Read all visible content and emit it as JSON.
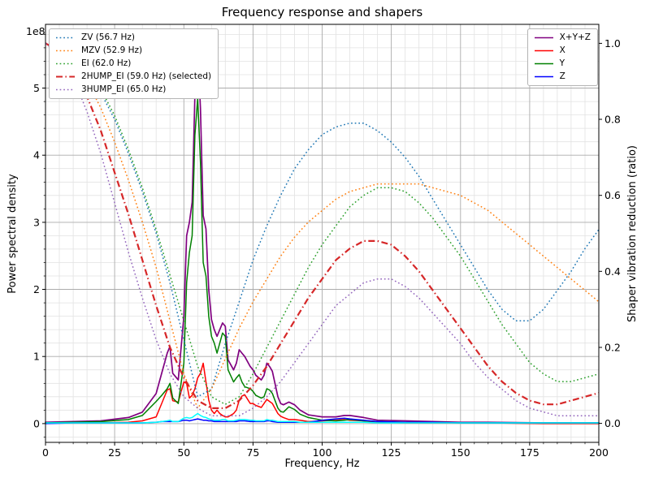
{
  "chart_data": {
    "type": "line",
    "title": "Frequency response and shapers",
    "xlabel": "Frequency, Hz",
    "ylabel_left": "Power spectral density",
    "ylabel_right": "Shaper vibration reduction (ratio)",
    "xlim": [
      0,
      200
    ],
    "x_ticks": [
      0,
      25,
      50,
      75,
      100,
      125,
      150,
      175,
      200
    ],
    "x_minor_step": 5,
    "left_axis": {
      "ticks": [
        0,
        1,
        2,
        3,
        4,
        5
      ],
      "lim": [
        -0.28,
        5.95
      ],
      "minor_step": 0.2,
      "offset": "1e8",
      "unit": "1e8"
    },
    "right_axis": {
      "ticks": [
        0,
        0.2,
        0.4,
        0.6,
        0.8,
        1
      ],
      "lim": [
        -0.05,
        1.05
      ]
    },
    "grid": {
      "major_color": "#ababab",
      "minor_color": "#e2e2e2"
    },
    "psd": {
      "x": [
        0,
        10,
        20,
        30,
        35,
        40,
        42,
        44,
        45,
        46,
        48,
        50,
        51,
        52,
        53,
        54,
        55,
        56,
        57,
        58,
        59,
        60,
        61,
        62,
        63,
        64,
        65,
        66,
        68,
        69,
        70,
        71,
        72,
        74,
        75,
        76,
        78,
        79,
        80,
        81,
        82,
        84,
        85,
        86,
        88,
        90,
        92,
        95,
        100,
        105,
        108,
        110,
        115,
        120,
        130,
        140,
        150,
        160,
        180,
        200
      ],
      "unit": "1e8",
      "series": [
        {
          "name": "sum",
          "label": "X+Y+Z",
          "color": "#800080",
          "width": 1.7,
          "values": [
            0.02,
            0.03,
            0.04,
            0.09,
            0.17,
            0.45,
            0.75,
            1.05,
            1.15,
            0.75,
            0.65,
            1.6,
            2.8,
            3.0,
            3.3,
            4.9,
            5.6,
            4.7,
            3.1,
            2.9,
            2.0,
            1.55,
            1.4,
            1.3,
            1.4,
            1.5,
            1.45,
            0.95,
            0.8,
            0.9,
            1.1,
            1.05,
            1.0,
            0.85,
            0.8,
            0.72,
            0.65,
            0.72,
            0.9,
            0.85,
            0.78,
            0.4,
            0.3,
            0.28,
            0.32,
            0.28,
            0.2,
            0.13,
            0.1,
            0.1,
            0.12,
            0.12,
            0.09,
            0.05,
            0.04,
            0.03,
            0.02,
            0.02,
            0.01,
            0.01
          ]
        },
        {
          "name": "x",
          "label": "X",
          "color": "#ff0000",
          "width": 1.5,
          "values": [
            0.01,
            0.01,
            0.01,
            0.02,
            0.04,
            0.1,
            0.3,
            0.5,
            0.52,
            0.34,
            0.32,
            0.62,
            0.6,
            0.38,
            0.42,
            0.52,
            0.68,
            0.75,
            0.9,
            0.62,
            0.35,
            0.2,
            0.15,
            0.2,
            0.15,
            0.12,
            0.1,
            0.1,
            0.15,
            0.2,
            0.35,
            0.41,
            0.43,
            0.3,
            0.3,
            0.27,
            0.24,
            0.3,
            0.36,
            0.33,
            0.3,
            0.15,
            0.11,
            0.09,
            0.06,
            0.06,
            0.05,
            0.03,
            0.04,
            0.05,
            0.06,
            0.05,
            0.04,
            0.02,
            0.01,
            0.01,
            0.01,
            0.01,
            0.0,
            0.0
          ]
        },
        {
          "name": "y",
          "label": "Y",
          "color": "#008000",
          "width": 1.5,
          "values": [
            0.01,
            0.02,
            0.03,
            0.06,
            0.12,
            0.33,
            0.42,
            0.52,
            0.6,
            0.38,
            0.3,
            0.9,
            2.1,
            2.55,
            2.8,
            4.3,
            4.85,
            3.9,
            2.4,
            2.2,
            1.6,
            1.3,
            1.2,
            1.05,
            1.2,
            1.35,
            1.3,
            0.8,
            0.62,
            0.68,
            0.73,
            0.62,
            0.55,
            0.52,
            0.48,
            0.42,
            0.38,
            0.4,
            0.52,
            0.5,
            0.45,
            0.23,
            0.18,
            0.17,
            0.25,
            0.21,
            0.14,
            0.09,
            0.05,
            0.04,
            0.05,
            0.06,
            0.04,
            0.03,
            0.02,
            0.02,
            0.01,
            0.01,
            0.01,
            0.01
          ]
        },
        {
          "name": "z",
          "label": "Z",
          "color": "#0000ff",
          "width": 1.5,
          "values": [
            0.0,
            0.01,
            0.01,
            0.01,
            0.01,
            0.02,
            0.03,
            0.03,
            0.03,
            0.03,
            0.03,
            0.05,
            0.05,
            0.04,
            0.05,
            0.06,
            0.07,
            0.06,
            0.05,
            0.05,
            0.04,
            0.04,
            0.03,
            0.03,
            0.03,
            0.03,
            0.03,
            0.03,
            0.03,
            0.03,
            0.04,
            0.04,
            0.04,
            0.03,
            0.03,
            0.03,
            0.03,
            0.03,
            0.04,
            0.04,
            0.03,
            0.02,
            0.02,
            0.02,
            0.02,
            0.02,
            0.02,
            0.02,
            0.05,
            0.07,
            0.08,
            0.07,
            0.05,
            0.03,
            0.02,
            0.02,
            0.01,
            0.01,
            0.01,
            0.01
          ]
        },
        {
          "name": "after_shaper",
          "label": "",
          "color": "#00ffff",
          "width": 1.5,
          "values": [
            0.01,
            0.01,
            0.01,
            0.01,
            0.01,
            0.02,
            0.03,
            0.04,
            0.05,
            0.03,
            0.03,
            0.08,
            0.09,
            0.08,
            0.09,
            0.12,
            0.15,
            0.12,
            0.1,
            0.09,
            0.07,
            0.06,
            0.05,
            0.05,
            0.05,
            0.06,
            0.06,
            0.04,
            0.04,
            0.05,
            0.06,
            0.06,
            0.06,
            0.05,
            0.05,
            0.04,
            0.04,
            0.04,
            0.06,
            0.05,
            0.05,
            0.03,
            0.03,
            0.03,
            0.03,
            0.03,
            0.02,
            0.02,
            0.02,
            0.02,
            0.02,
            0.02,
            0.02,
            0.01,
            0.01,
            0.01,
            0.01,
            0.01,
            0.01,
            0.01
          ]
        }
      ]
    },
    "shapers": {
      "x": [
        0,
        5,
        10,
        15,
        20,
        25,
        30,
        35,
        40,
        45,
        50,
        55,
        60,
        65,
        70,
        75,
        80,
        85,
        90,
        95,
        100,
        105,
        110,
        115,
        120,
        125,
        130,
        135,
        140,
        145,
        150,
        155,
        160,
        165,
        170,
        175,
        180,
        185,
        190,
        195,
        200
      ],
      "series": [
        {
          "name": "ZV",
          "label": "ZV (56.7 Hz)",
          "freq_hz": 56.7,
          "color": "#1f77b4",
          "linestyle": "dotted",
          "selected": false,
          "values": [
            1.0,
            0.99,
            0.97,
            0.93,
            0.87,
            0.8,
            0.71,
            0.61,
            0.5,
            0.37,
            0.22,
            0.07,
            0.09,
            0.21,
            0.32,
            0.43,
            0.52,
            0.6,
            0.67,
            0.72,
            0.76,
            0.78,
            0.79,
            0.79,
            0.77,
            0.74,
            0.7,
            0.65,
            0.59,
            0.53,
            0.47,
            0.41,
            0.35,
            0.3,
            0.27,
            0.27,
            0.3,
            0.35,
            0.4,
            0.46,
            0.51
          ]
        },
        {
          "name": "MZV",
          "label": "MZV (52.9 Hz)",
          "freq_hz": 52.9,
          "color": "#ff7f0e",
          "linestyle": "dotted",
          "selected": false,
          "values": [
            1.0,
            0.99,
            0.96,
            0.9,
            0.83,
            0.74,
            0.64,
            0.53,
            0.41,
            0.27,
            0.13,
            0.04,
            0.09,
            0.17,
            0.25,
            0.32,
            0.38,
            0.44,
            0.49,
            0.53,
            0.56,
            0.59,
            0.61,
            0.62,
            0.63,
            0.63,
            0.63,
            0.63,
            0.62,
            0.61,
            0.6,
            0.58,
            0.56,
            0.53,
            0.5,
            0.47,
            0.44,
            0.41,
            0.38,
            0.35,
            0.32
          ]
        },
        {
          "name": "EI",
          "label": "EI (62.0 Hz)",
          "freq_hz": 62.0,
          "color": "#2ca02c",
          "linestyle": "dotted",
          "selected": false,
          "values": [
            1.0,
            0.99,
            0.97,
            0.94,
            0.88,
            0.81,
            0.72,
            0.62,
            0.51,
            0.39,
            0.27,
            0.15,
            0.07,
            0.05,
            0.07,
            0.13,
            0.2,
            0.27,
            0.34,
            0.41,
            0.47,
            0.52,
            0.57,
            0.6,
            0.62,
            0.62,
            0.61,
            0.58,
            0.54,
            0.49,
            0.44,
            0.38,
            0.32,
            0.26,
            0.21,
            0.16,
            0.13,
            0.11,
            0.11,
            0.12,
            0.13
          ]
        },
        {
          "name": "2HUMP_EI",
          "label": "2HUMP_EI (59.0 Hz) (selected)",
          "freq_hz": 59.0,
          "color": "#d62728",
          "linestyle": "dashdot",
          "selected": true,
          "values": [
            1.0,
            0.98,
            0.93,
            0.86,
            0.77,
            0.66,
            0.55,
            0.43,
            0.31,
            0.2,
            0.12,
            0.06,
            0.04,
            0.04,
            0.06,
            0.1,
            0.15,
            0.21,
            0.27,
            0.33,
            0.38,
            0.43,
            0.46,
            0.48,
            0.48,
            0.47,
            0.44,
            0.4,
            0.35,
            0.3,
            0.25,
            0.2,
            0.15,
            0.11,
            0.08,
            0.06,
            0.05,
            0.05,
            0.06,
            0.07,
            0.08
          ]
        },
        {
          "name": "3HUMP_EI",
          "label": "3HUMP_EI (65.0 Hz)",
          "freq_hz": 65.0,
          "color": "#9467bd",
          "linestyle": "dotted",
          "selected": false,
          "values": [
            1.0,
            0.97,
            0.91,
            0.82,
            0.71,
            0.58,
            0.45,
            0.33,
            0.22,
            0.13,
            0.07,
            0.04,
            0.02,
            0.02,
            0.02,
            0.04,
            0.07,
            0.11,
            0.16,
            0.21,
            0.26,
            0.31,
            0.34,
            0.37,
            0.38,
            0.38,
            0.36,
            0.33,
            0.29,
            0.25,
            0.21,
            0.16,
            0.12,
            0.09,
            0.06,
            0.04,
            0.03,
            0.02,
            0.02,
            0.02,
            0.02
          ]
        }
      ]
    },
    "legend_left": [
      {
        "label": "ZV (56.7 Hz)",
        "color": "#1f77b4",
        "linestyle": "dotted"
      },
      {
        "label": "MZV (52.9 Hz)",
        "color": "#ff7f0e",
        "linestyle": "dotted"
      },
      {
        "label": "EI (62.0 Hz)",
        "color": "#2ca02c",
        "linestyle": "dotted"
      },
      {
        "label": "2HUMP_EI (59.0 Hz) (selected)",
        "color": "#d62728",
        "linestyle": "dashdot"
      },
      {
        "label": "3HUMP_EI (65.0 Hz)",
        "color": "#9467bd",
        "linestyle": "dotted"
      }
    ],
    "legend_right": [
      {
        "label": "X+Y+Z",
        "color": "#800080",
        "linestyle": "solid"
      },
      {
        "label": "X",
        "color": "#ff0000",
        "linestyle": "solid"
      },
      {
        "label": "Y",
        "color": "#008000",
        "linestyle": "solid"
      },
      {
        "label": "Z",
        "color": "#0000ff",
        "linestyle": "solid"
      }
    ]
  }
}
